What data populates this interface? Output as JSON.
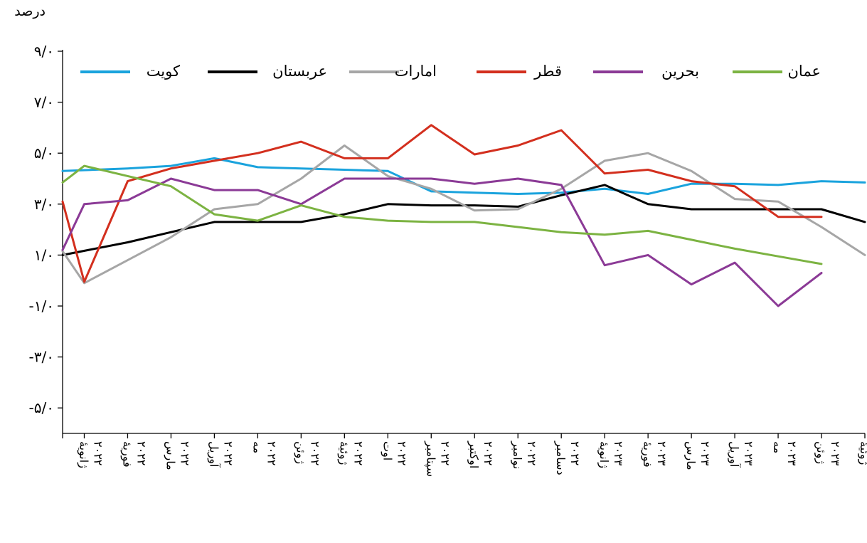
{
  "chart_data": {
    "type": "line",
    "ylabel": "درصد",
    "ylim": [
      -6,
      9
    ],
    "y_ticks": [
      {
        "value": 9,
        "label": "۹/۰"
      },
      {
        "value": 7,
        "label": "۷/۰"
      },
      {
        "value": 5,
        "label": "۵/۰"
      },
      {
        "value": 3,
        "label": "۳/۰"
      },
      {
        "value": 1,
        "label": "۱/۰"
      },
      {
        "value": -1,
        "label": "-۱/۰"
      },
      {
        "value": -3,
        "label": "-۳/۰"
      },
      {
        "value": -5,
        "label": "-۵/۰"
      }
    ],
    "x_axis_at": -6,
    "categories": [
      [
        "ژانویهٔ",
        "۲۰۲۲"
      ],
      [
        "فوریهٔ",
        "۲۰۲۲"
      ],
      [
        "مارس",
        "۲۰۲۲"
      ],
      [
        "آوریل",
        "۲۰۲۲"
      ],
      [
        "مه",
        "۲۰۲۲"
      ],
      [
        "ژوئن",
        "۲۰۲۲"
      ],
      [
        "ژوئیهٔ",
        "۲۰۲۲"
      ],
      [
        "اوت",
        "۲۰۲۲"
      ],
      [
        "سپتامبر",
        "۲۰۲۲"
      ],
      [
        "اوکتبر",
        "۲۰۲۲"
      ],
      [
        "نوامبر",
        "۲۰۲۲"
      ],
      [
        "دسامبر",
        "۲۰۲۲"
      ],
      [
        "ژانویهٔ",
        "۲۰۲۳"
      ],
      [
        "فوریهٔ",
        "۲۰۲۳"
      ],
      [
        "مارس",
        "۲۰۲۳"
      ],
      [
        "آوریل",
        "۲۰۲۳"
      ],
      [
        "مه",
        "۲۰۲۳"
      ],
      [
        "ژوئن",
        "۲۰۲۳"
      ],
      [
        "ژوئیهٔ",
        "۲۰۲۳"
      ]
    ],
    "x_positions": [
      0,
      0.5,
      1.5,
      2.5,
      3.5,
      4.5,
      5.5,
      6.5,
      7.5,
      8.5,
      9.5,
      10.5,
      11.5,
      12.5,
      13.5,
      14.5,
      15.5,
      16.5,
      17.5,
      18.5
    ],
    "series": [
      {
        "name": "کویت",
        "color": "#1aa3dd",
        "x": [
          0,
          1.5,
          2.5,
          3.5,
          4.5,
          5.5,
          6.5,
          7.5,
          8.5,
          9.5,
          10.5,
          11.5,
          12.5,
          13.5,
          14.5,
          15.5,
          16.5,
          17.5,
          18.5
        ],
        "values": [
          4.3,
          4.4,
          4.5,
          4.8,
          4.45,
          4.4,
          4.35,
          4.3,
          3.5,
          3.45,
          3.4,
          3.45,
          3.6,
          3.4,
          3.8,
          3.8,
          3.75,
          3.9,
          3.85
        ]
      },
      {
        "name": "عربستان",
        "color": "#000000",
        "x": [
          0,
          1.5,
          2.5,
          3.5,
          4.5,
          5.5,
          6.5,
          7.5,
          8.5,
          9.5,
          10.5,
          11.5,
          12.5,
          13.5,
          14.5,
          15.5,
          16.5,
          17.5,
          18.5
        ],
        "values": [
          1.0,
          1.5,
          1.9,
          2.3,
          2.3,
          2.3,
          2.6,
          3.0,
          2.95,
          2.95,
          2.9,
          3.35,
          3.75,
          3.0,
          2.8,
          2.8,
          2.8,
          2.8,
          2.3
        ]
      },
      {
        "name": "امارات",
        "color": "#a6a6a6",
        "x": [
          0,
          0.5,
          1.5,
          2.5,
          3.5,
          4.5,
          5.5,
          6.5,
          7.5,
          8.5,
          9.5,
          10.5,
          11.5,
          12.5,
          13.5,
          14.5,
          15.5,
          16.5,
          17.5,
          18.5
        ],
        "values": [
          1.15,
          -0.1,
          0.8,
          1.7,
          2.8,
          3.0,
          4.0,
          5.3,
          4.1,
          3.6,
          2.75,
          2.8,
          3.6,
          4.7,
          5.0,
          4.3,
          3.2,
          3.1,
          2.1,
          1.0
        ]
      },
      {
        "name": "قطر",
        "color": "#d32f1e",
        "x": [
          0,
          0.5,
          1.5,
          2.5,
          3.5,
          4.5,
          5.5,
          6.5,
          7.5,
          8.5,
          9.5,
          10.5,
          11.5,
          12.5,
          13.5,
          14.5,
          15.5,
          16.5,
          17.5
        ],
        "values": [
          3.1,
          -0.05,
          3.9,
          4.4,
          4.7,
          5.0,
          5.45,
          4.8,
          4.8,
          6.1,
          4.95,
          5.3,
          5.9,
          4.2,
          4.35,
          3.9,
          3.7,
          2.5,
          2.5
        ]
      },
      {
        "name": "بحرین",
        "color": "#8b3a96",
        "x": [
          0,
          0.5,
          1.5,
          2.5,
          3.5,
          4.5,
          5.5,
          6.5,
          7.5,
          8.5,
          9.5,
          10.5,
          11.5,
          12.5,
          13.5,
          14.5,
          15.5,
          16.5,
          17.5
        ],
        "values": [
          1.2,
          3.0,
          3.15,
          4.0,
          3.55,
          3.55,
          3.0,
          4.0,
          4.0,
          4.0,
          3.8,
          4.0,
          3.75,
          0.6,
          1.0,
          -0.15,
          0.7,
          -1.0,
          0.3
        ]
      },
      {
        "name": "عمان",
        "color": "#7cb342",
        "x": [
          0,
          0.5,
          1.5,
          2.5,
          3.5,
          4.5,
          5.5,
          6.5,
          7.5,
          8.5,
          9.5,
          10.5,
          11.5,
          12.5,
          13.5,
          14.5,
          15.5,
          16.5,
          17.5
        ],
        "values": [
          3.85,
          4.5,
          4.1,
          3.7,
          2.6,
          2.35,
          2.95,
          2.5,
          2.35,
          2.3,
          2.3,
          2.1,
          1.9,
          1.8,
          1.95,
          1.6,
          1.25,
          0.95,
          0.65
        ]
      }
    ],
    "legend": "top, inside plot area, right-to-left"
  }
}
